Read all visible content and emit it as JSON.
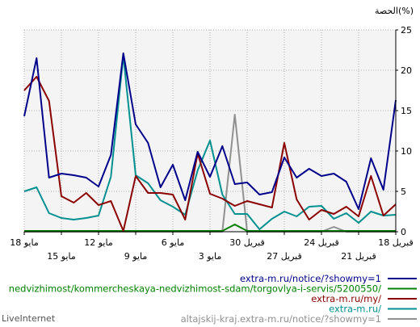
{
  "chart_data": {
    "type": "line",
    "title": "الحصة(%)",
    "ylim": [
      0,
      25
    ],
    "y_ticks": [
      "0",
      "5",
      "10",
      "15",
      "20",
      "25"
    ],
    "x_axis_direction": "right-to-left",
    "x_ticks_row1": [
      "18 قبريل",
      "24 قبريل",
      "30 قبريل",
      "6 مايو",
      "12 مايو",
      "18 مايو"
    ],
    "x_ticks_row2": [
      "21 قبريل",
      "27 قبريل",
      "3 مايو",
      "9 مايو",
      "15 مايو"
    ],
    "series": [
      {
        "name": "extra-m.ru/notice/?showmy=1",
        "color": "#00008b",
        "values": [
          16.3,
          5.2,
          9.1,
          2.8,
          6.2,
          7.2,
          6.9,
          7.8,
          6.7,
          9.2,
          4.9,
          4.6,
          6.1,
          5.9,
          10.6,
          6.8,
          9.9,
          3.9,
          8.3,
          5.5,
          11.0,
          13.3,
          22.1,
          9.5,
          5.6,
          6.7,
          7.0,
          7.2,
          6.7,
          21.5,
          14.3
        ]
      },
      {
        "name": "nedvizhimost/kommercheskaya-nedvizhimost-sdam/torgovlya-i-servis/5200550/",
        "color": "#008000",
        "values": [
          0.1,
          0.1,
          0.1,
          0.1,
          0.1,
          0.1,
          0.1,
          0.1,
          0.1,
          0.1,
          0.1,
          0.1,
          0.1,
          0.9,
          0.1,
          0.1,
          0.1,
          0.1,
          0.1,
          0.1,
          0.1,
          0.1,
          0.1,
          0.1,
          0.1,
          0.1,
          0.1,
          0.1,
          0.1,
          0.1,
          0.1
        ]
      },
      {
        "name": "extra-m.ru/my/",
        "color": "#8b0000",
        "values": [
          3.4,
          2.0,
          6.9,
          1.9,
          3.1,
          2.2,
          2.7,
          1.5,
          4.0,
          11.0,
          3.0,
          3.4,
          3.8,
          3.2,
          4.1,
          4.7,
          9.7,
          1.5,
          4.6,
          4.8,
          4.8,
          6.9,
          0.1,
          3.8,
          3.3,
          4.8,
          3.6,
          4.4,
          16.2,
          19.2,
          17.5
        ]
      },
      {
        "name": "extra-m.ru/",
        "color": "#009090",
        "values": [
          2.1,
          2.0,
          2.5,
          1.1,
          2.3,
          1.6,
          3.2,
          3.1,
          1.9,
          2.5,
          1.6,
          0.3,
          2.2,
          2.2,
          4.6,
          11.3,
          7.6,
          2.1,
          3.1,
          3.9,
          6.0,
          7.0,
          21.8,
          6.8,
          2.0,
          1.7,
          1.5,
          1.7,
          2.3,
          5.5,
          5.0
        ]
      },
      {
        "name": "altajskij-kraj.extra-m.ru/notice/?showmy=1",
        "color": "#909090",
        "values": [
          0,
          0,
          0,
          0,
          0,
          0.6,
          0,
          0,
          0,
          0,
          0,
          0,
          0,
          14.5,
          0,
          0,
          0,
          0,
          0,
          0,
          0,
          0,
          0,
          0,
          0,
          0,
          0,
          0,
          0,
          0,
          0
        ]
      }
    ]
  },
  "footer": {
    "brand": "LiveInternet"
  }
}
